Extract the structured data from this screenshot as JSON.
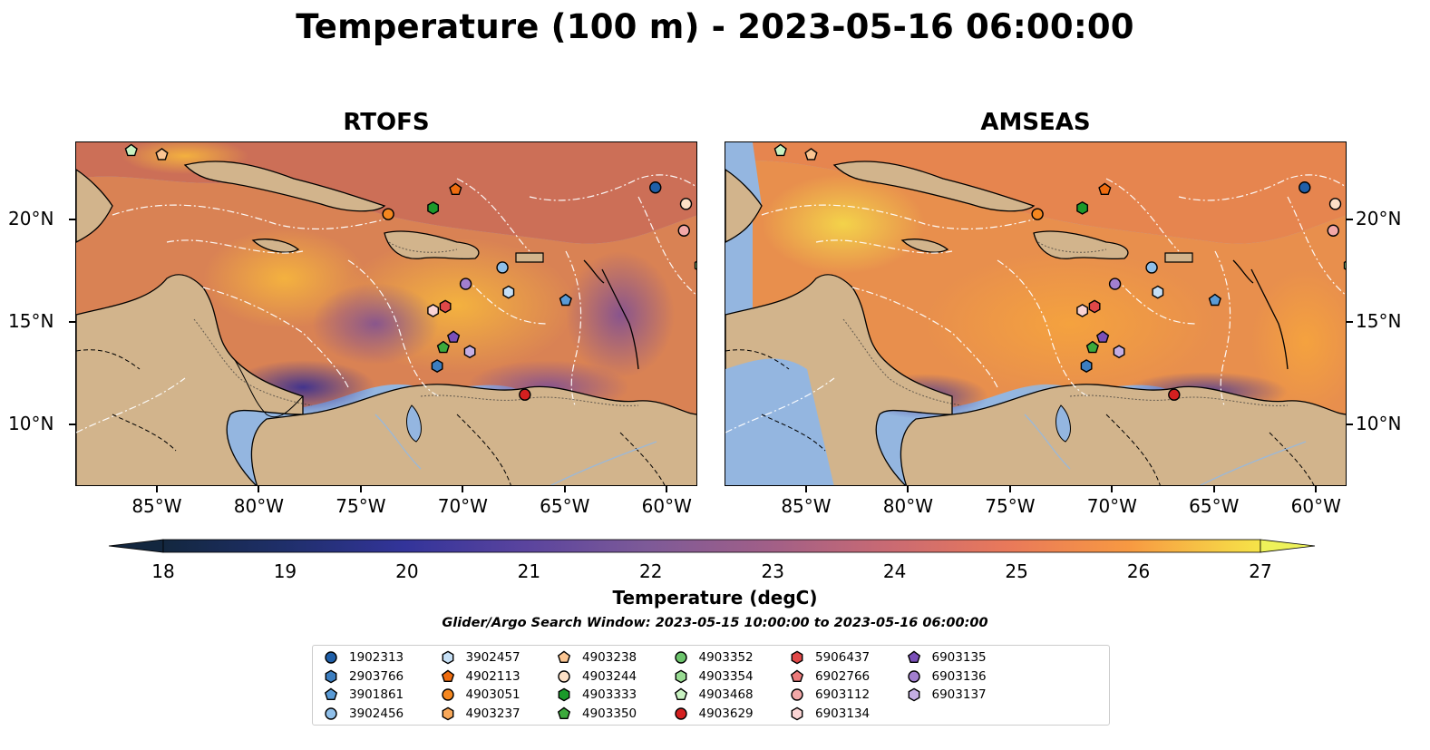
{
  "title": "Temperature (100 m) - 2023-05-16 06:00:00",
  "panels": [
    {
      "title": "RTOFS"
    },
    {
      "title": "AMSEAS"
    }
  ],
  "axes": {
    "x_ticks": [
      {
        "label": "85°W",
        "lon": -85
      },
      {
        "label": "80°W",
        "lon": -80
      },
      {
        "label": "75°W",
        "lon": -75
      },
      {
        "label": "70°W",
        "lon": -70
      },
      {
        "label": "65°W",
        "lon": -65
      },
      {
        "label": "60°W",
        "lon": -60
      }
    ],
    "y_ticks": [
      {
        "label": "20°N",
        "lat": 20
      },
      {
        "label": "15°N",
        "lat": 15
      },
      {
        "label": "10°N",
        "lat": 10
      }
    ],
    "lon_range": [
      -89,
      -58.5
    ],
    "lat_range": [
      7,
      23.8
    ]
  },
  "colorbar": {
    "label": "Temperature (degC)",
    "ticks": [
      "18",
      "19",
      "20",
      "21",
      "22",
      "23",
      "24",
      "25",
      "26",
      "27"
    ],
    "range": [
      18,
      27
    ],
    "extend": "both"
  },
  "search_window": "Glider/Argo Search Window: 2023-05-15 10:00:00 to 2023-05-16 06:00:00",
  "legend": {
    "columns": 7,
    "entries": [
      {
        "id": "1902313",
        "color": "#1f5fa8",
        "marker": "circle"
      },
      {
        "id": "2903766",
        "color": "#3c7ec0",
        "marker": "hexagon"
      },
      {
        "id": "3901861",
        "color": "#5a9bd6",
        "marker": "pentagon"
      },
      {
        "id": "3902456",
        "color": "#8fbfe9",
        "marker": "circle"
      },
      {
        "id": "3902457",
        "color": "#c6e0f6",
        "marker": "hexagon"
      },
      {
        "id": "4902113",
        "color": "#ef6c0f",
        "marker": "pentagon"
      },
      {
        "id": "4903051",
        "color": "#f5871f",
        "marker": "circle"
      },
      {
        "id": "4903237",
        "color": "#f8a85a",
        "marker": "hexagon"
      },
      {
        "id": "4903238",
        "color": "#fbc592",
        "marker": "pentagon"
      },
      {
        "id": "4903244",
        "color": "#fde0c6",
        "marker": "circle"
      },
      {
        "id": "4903333",
        "color": "#1b9a2a",
        "marker": "hexagon"
      },
      {
        "id": "4903350",
        "color": "#3caa3c",
        "marker": "pentagon"
      },
      {
        "id": "4903352",
        "color": "#6cc46c",
        "marker": "circle"
      },
      {
        "id": "4903354",
        "color": "#98db92",
        "marker": "hexagon"
      },
      {
        "id": "4903468",
        "color": "#c9f2c2",
        "marker": "pentagon"
      },
      {
        "id": "4903629",
        "color": "#d42020",
        "marker": "circle"
      },
      {
        "id": "5906437",
        "color": "#e04848",
        "marker": "hexagon"
      },
      {
        "id": "6902766",
        "color": "#ec7a7a",
        "marker": "pentagon"
      },
      {
        "id": "6903112",
        "color": "#f3a8a8",
        "marker": "circle"
      },
      {
        "id": "6903134",
        "color": "#fad4d4",
        "marker": "hexagon"
      },
      {
        "id": "6903135",
        "color": "#7a4fb8",
        "marker": "pentagon"
      },
      {
        "id": "6903136",
        "color": "#a27fcf",
        "marker": "circle"
      },
      {
        "id": "6903137",
        "color": "#c4aee3",
        "marker": "hexagon"
      }
    ]
  },
  "floats": [
    {
      "id": "1902313",
      "lon": -60.6,
      "lat": 21.6
    },
    {
      "id": "6903112",
      "lon": -59.2,
      "lat": 19.5
    },
    {
      "id": "4903244",
      "lon": -59.1,
      "lat": 20.8
    },
    {
      "id": "4903354",
      "lon": -58.4,
      "lat": 17.8
    },
    {
      "id": "4903468",
      "lon": -86.3,
      "lat": 23.4
    },
    {
      "id": "4903238",
      "lon": -84.8,
      "lat": 23.2
    },
    {
      "id": "4903051",
      "lon": -73.7,
      "lat": 20.3
    },
    {
      "id": "4903333",
      "lon": -71.5,
      "lat": 20.6
    },
    {
      "id": "4902113",
      "lon": -70.4,
      "lat": 21.5
    },
    {
      "id": "3902456",
      "lon": -68.1,
      "lat": 17.7
    },
    {
      "id": "6903136",
      "lon": -69.9,
      "lat": 16.9
    },
    {
      "id": "3902457",
      "lon": -67.8,
      "lat": 16.5
    },
    {
      "id": "3901861",
      "lon": -65.0,
      "lat": 16.1
    },
    {
      "id": "6903134",
      "lon": -71.5,
      "lat": 15.6
    },
    {
      "id": "5906437",
      "lon": -70.9,
      "lat": 15.8
    },
    {
      "id": "6903137",
      "lon": -69.7,
      "lat": 13.6
    },
    {
      "id": "6903135",
      "lon": -70.5,
      "lat": 14.3
    },
    {
      "id": "4903350",
      "lon": -71.0,
      "lat": 13.8
    },
    {
      "id": "2903766",
      "lon": -71.3,
      "lat": 12.9
    },
    {
      "id": "4903629",
      "lon": -67.0,
      "lat": 11.5
    }
  ]
}
